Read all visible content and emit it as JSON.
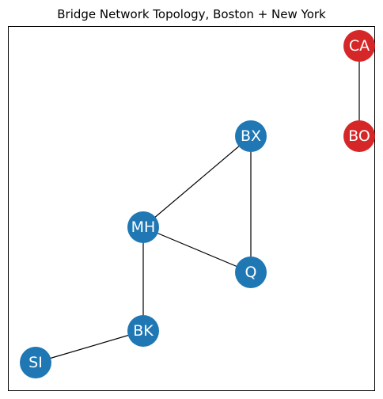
{
  "title": "Bridge Network Topology, Boston + New York",
  "colors": {
    "node_blue": "#1f77b4",
    "node_red": "#d62728",
    "edge": "#000000",
    "frame": "#000000",
    "label": "#ffffff"
  },
  "nodes": [
    {
      "id": "CA",
      "label": "CA",
      "color": "red"
    },
    {
      "id": "BO",
      "label": "BO",
      "color": "red"
    },
    {
      "id": "BX",
      "label": "BX",
      "color": "blue"
    },
    {
      "id": "MH",
      "label": "MH",
      "color": "blue"
    },
    {
      "id": "Q",
      "label": "Q",
      "color": "blue"
    },
    {
      "id": "BK",
      "label": "BK",
      "color": "blue"
    },
    {
      "id": "SI",
      "label": "SI",
      "color": "blue"
    }
  ],
  "edges": [
    {
      "source": "CA",
      "target": "BO"
    },
    {
      "source": "BX",
      "target": "MH"
    },
    {
      "source": "BX",
      "target": "Q"
    },
    {
      "source": "MH",
      "target": "Q"
    },
    {
      "source": "MH",
      "target": "BK"
    },
    {
      "source": "BK",
      "target": "SI"
    }
  ]
}
